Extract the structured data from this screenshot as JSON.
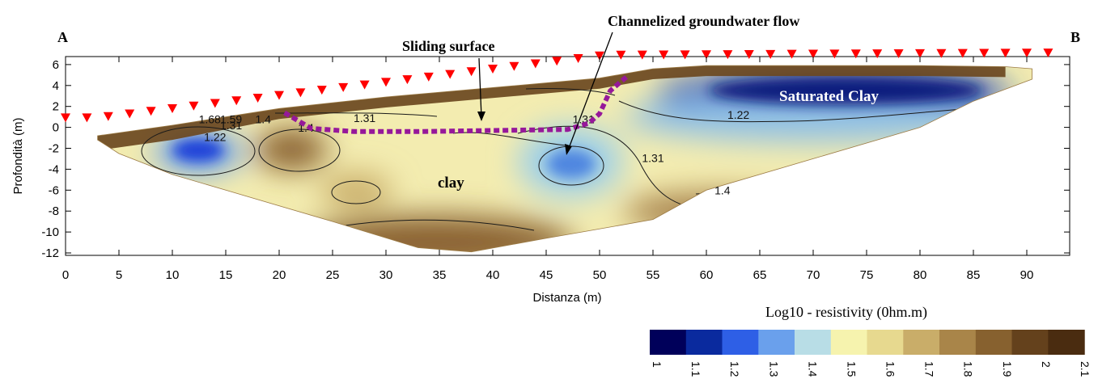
{
  "chart_data": {
    "type": "heatmap",
    "title": "",
    "xlabel": "Distanza (m)",
    "ylabel": "Profondità (m)",
    "xlim": [
      0,
      94
    ],
    "ylim": [
      -12,
      7
    ],
    "x_ticks": [
      "0",
      "5",
      "10",
      "15",
      "20",
      "25",
      "30",
      "35",
      "40",
      "45",
      "50",
      "55",
      "60",
      "65",
      "70",
      "75",
      "80",
      "85",
      "90"
    ],
    "y_ticks": [
      "6",
      "4",
      "2",
      "0",
      "-2",
      "-4",
      "-6",
      "-8",
      "-10",
      "-12"
    ],
    "profile_ends": {
      "start": "A",
      "end": "B"
    },
    "annotations": {
      "sliding": "Sliding surface",
      "channel": "Channelized groundwater flow",
      "clay": "clay",
      "saturated": "Saturated Clay"
    },
    "contour_labels": [
      {
        "text": "1.68",
        "x": 13.5,
        "y": 0.4
      },
      {
        "text": "1.59",
        "x": 15.5,
        "y": 0.4
      },
      {
        "text": "1.31",
        "x": 15.5,
        "y": -0.2
      },
      {
        "text": "1.4",
        "x": 18.5,
        "y": 0.4
      },
      {
        "text": "1.22",
        "x": 14,
        "y": -1.3
      },
      {
        "text": "1.4",
        "x": 22.5,
        "y": -0.4
      },
      {
        "text": "1.31",
        "x": 28,
        "y": 0.5
      },
      {
        "text": "1.31",
        "x": 48.5,
        "y": 0.4
      },
      {
        "text": "1.22",
        "x": 63,
        "y": 0.8
      },
      {
        "text": "1.31",
        "x": 55,
        "y": -3.3
      },
      {
        "text": "1.4",
        "x": 61.5,
        "y": -6.4
      }
    ],
    "electrodes_x": [
      0,
      2,
      4,
      6,
      8,
      10,
      12,
      14,
      16,
      18,
      20,
      22,
      24,
      26,
      28,
      30,
      32,
      34,
      36,
      38,
      40,
      42,
      44,
      46,
      48,
      50,
      52,
      54,
      56,
      58,
      60,
      62,
      64,
      66,
      68,
      70,
      72,
      74,
      76,
      78,
      80,
      82,
      84,
      86,
      88,
      90,
      92
    ],
    "sliding_surface": [
      [
        20.5,
        1.4
      ],
      [
        23,
        -0.1
      ],
      [
        27,
        -0.4
      ],
      [
        33,
        -0.4
      ],
      [
        40,
        -0.3
      ],
      [
        47,
        -0.2
      ],
      [
        49,
        0.4
      ],
      [
        50,
        1.3
      ],
      [
        51,
        3.5
      ],
      [
        52.5,
        4.8
      ]
    ],
    "colorbar": {
      "title": "Log10  - resistivity (0hm.m)",
      "ticks": [
        "1",
        "1.1",
        "1.2",
        "1.3",
        "1.4",
        "1.5",
        "1.6",
        "1.7",
        "1.8",
        "1.9",
        "2",
        "2.1"
      ],
      "colors": [
        "#00005a",
        "#0a2a9e",
        "#2e5fe6",
        "#6aa0ec",
        "#b8dde6",
        "#f6f3ae",
        "#e7d98f",
        "#c9ad69",
        "#a98549",
        "#87612f",
        "#64411c",
        "#4a2c10"
      ]
    }
  }
}
